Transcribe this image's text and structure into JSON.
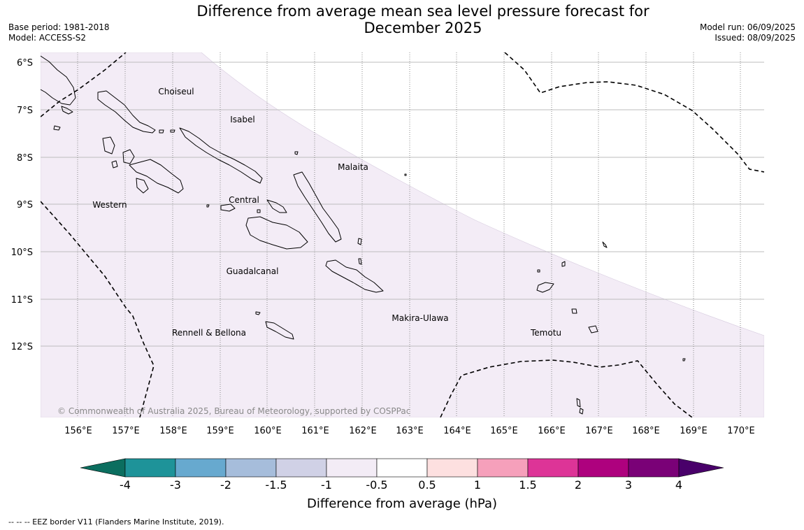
{
  "title_line1": "Difference from average mean sea level pressure forecast for",
  "title_line2": "December 2025",
  "meta_left": {
    "base_period": "Base period: 1981-2018",
    "model": "Model: ACCESS-S2"
  },
  "meta_right": {
    "model_run": "Model run: 06/09/2025",
    "issued": "Issued: 08/09/2025"
  },
  "lat_labels": [
    "6°S",
    "7°S",
    "8°S",
    "9°S",
    "10°S",
    "11°S",
    "12°S"
  ],
  "lon_labels": [
    "156°E",
    "157°E",
    "158°E",
    "159°E",
    "160°E",
    "161°E",
    "162°E",
    "163°E",
    "164°E",
    "165°E",
    "166°E",
    "167°E",
    "168°E",
    "169°E",
    "170°E"
  ],
  "regions": {
    "choiseul": "Choiseul",
    "isabel": "Isabel",
    "malaita": "Malaita",
    "western": "Western",
    "central": "Central",
    "guadalcanal": "Guadalcanal",
    "makira": "Makira-Ulawa",
    "rennell": "Rennell & Bellona",
    "temotu": "Temotu"
  },
  "copyright": "© Commonwealth of Australia 2025, Bureau of Meteorology, supported by COSPPac",
  "colorbar": {
    "ticks": [
      "-4",
      "-3",
      "-2",
      "-1.5",
      "-1",
      "-0.5",
      "0.5",
      "1",
      "1.5",
      "2",
      "3",
      "4"
    ],
    "colors": [
      "#0b6e5f",
      "#1e9399",
      "#67a9cf",
      "#a6bddb",
      "#d0d1e6",
      "#f3ecf6",
      "#ffffff",
      "#fde0e0",
      "#f6a0bb",
      "#dd3497",
      "#ae017e",
      "#7a0177",
      "#49006a"
    ],
    "label": "Difference from average (hPa)"
  },
  "footnote": "--  --  -- EEZ border V11 (Flanders Marine Institute, 2019)."
}
